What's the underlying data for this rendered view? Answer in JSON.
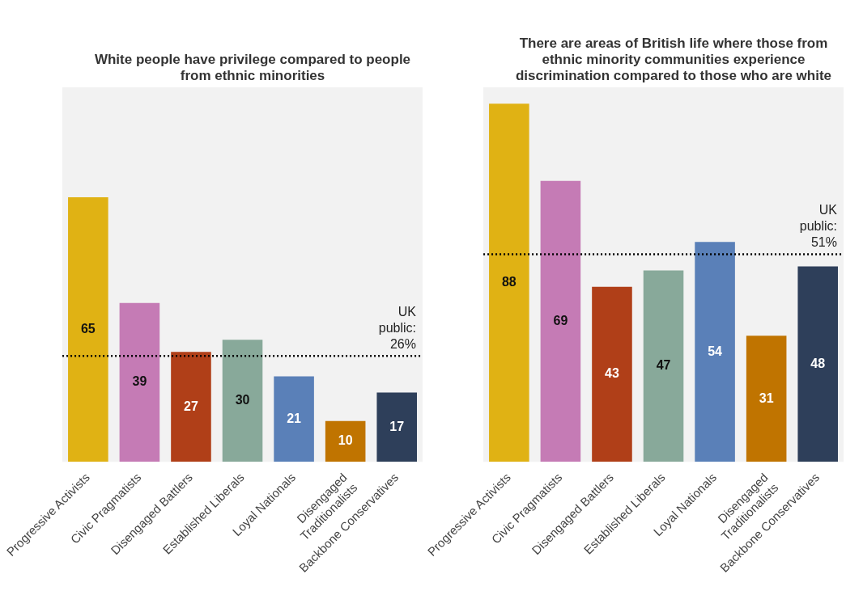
{
  "chart_data": [
    {
      "type": "bar",
      "title": "White people have privilege compared to people from ethnic minorities",
      "categories": [
        "Progressive Activists",
        "Civic Pragmatists",
        "Disengaged Battlers",
        "Established Liberals",
        "Loyal Nationals",
        "Disengaged Traditionalists",
        "Backbone Conservatives"
      ],
      "values": [
        65,
        39,
        27,
        30,
        21,
        10,
        17
      ],
      "colors": [
        "#e0b214",
        "#c57bb5",
        "#b03f18",
        "#88a99a",
        "#5a80b8",
        "#c07400",
        "#2e3f5a"
      ],
      "ylim": [
        0,
        92
      ],
      "tick_labels": "x",
      "data_labels": true,
      "grid": false,
      "legend": false,
      "ref_lines": [
        {
          "axis": "y",
          "value": 26,
          "label": "UK public: 26%",
          "color": "#000000",
          "line_style": "dotted"
        }
      ]
    },
    {
      "type": "bar",
      "title": "There are areas of British life where those from ethnic minority communities experience discrimination compared to those who are white",
      "categories": [
        "Progressive Activists",
        "Civic Pragmatists",
        "Disengaged Battlers",
        "Established Liberals",
        "Loyal Nationals",
        "Disengaged Traditionalists",
        "Backbone Conservatives"
      ],
      "values": [
        88,
        69,
        43,
        47,
        54,
        31,
        48
      ],
      "colors": [
        "#e0b214",
        "#c57bb5",
        "#b03f18",
        "#88a99a",
        "#5a80b8",
        "#c07400",
        "#2e3f5a"
      ],
      "ylim": [
        0,
        92
      ],
      "tick_labels": "x",
      "data_labels": true,
      "grid": false,
      "legend": false,
      "ref_lines": [
        {
          "axis": "y",
          "value": 51,
          "label": "UK public: 51%",
          "color": "#000000",
          "line_style": "dotted"
        }
      ]
    }
  ]
}
